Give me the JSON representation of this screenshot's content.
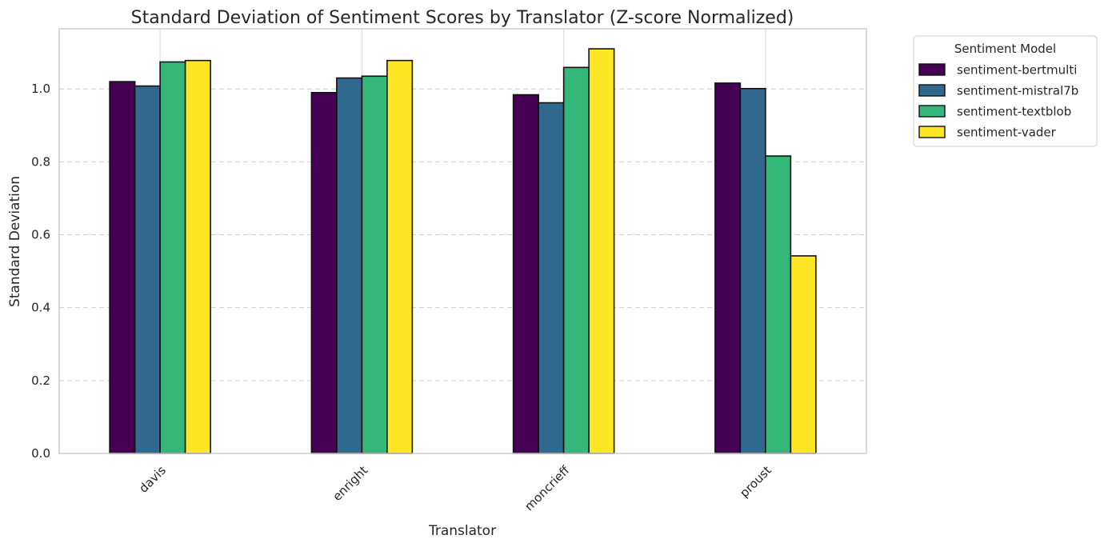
{
  "chart_data": {
    "type": "bar",
    "title": "Standard Deviation of Sentiment Scores by Translator (Z-score Normalized)",
    "xlabel": "Translator",
    "ylabel": "Standard Deviation",
    "categories": [
      "davis",
      "enright",
      "moncrieff",
      "proust"
    ],
    "ylim": [
      0,
      1.165
    ],
    "yticks": [
      0.0,
      0.2,
      0.4,
      0.6,
      0.8,
      1.0
    ],
    "ytick_labels": [
      "0.0",
      "0.2",
      "0.4",
      "0.6",
      "0.8",
      "1.0"
    ],
    "grid": true,
    "legend": {
      "title": "Sentiment Model",
      "placement": "outside-upper-right"
    },
    "series": [
      {
        "name": "sentiment-bertmulti",
        "color": "#440154",
        "values": [
          1.02,
          0.99,
          0.984,
          1.016
        ]
      },
      {
        "name": "sentiment-mistral7b",
        "color": "#31688e",
        "values": [
          1.008,
          1.03,
          0.962,
          1.001
        ]
      },
      {
        "name": "sentiment-textblob",
        "color": "#35b779",
        "values": [
          1.074,
          1.035,
          1.059,
          0.816
        ]
      },
      {
        "name": "sentiment-vader",
        "color": "#fde725",
        "values": [
          1.078,
          1.078,
          1.11,
          0.542
        ]
      }
    ]
  }
}
